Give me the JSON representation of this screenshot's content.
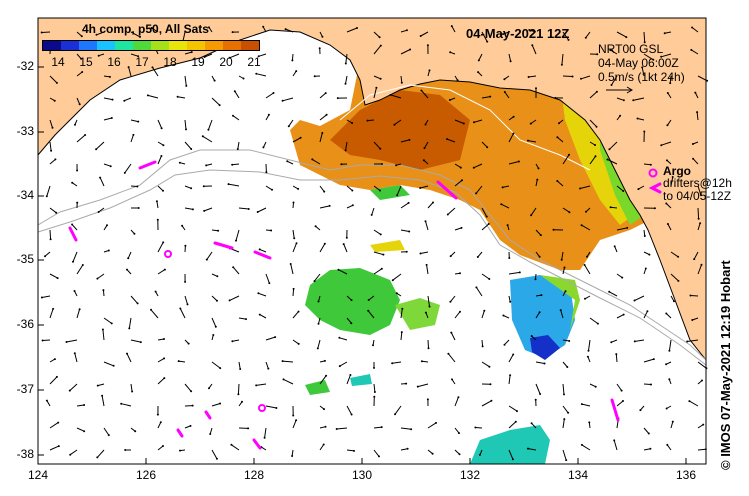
{
  "title": "4h comp, p50, All Sats",
  "date_label": "04-May-2021 12Z",
  "legend": {
    "current_source": "NRT00 GSL",
    "current_time": "04-May 06:00Z",
    "scale_label": "0.5m/s (1kt 24h)"
  },
  "argo_label": "Argo",
  "drifters_label_1": "drifters@12h",
  "drifters_label_2": "to 04/05-12Z",
  "credit": "© IMOS 07-May-2021 12:19 Hobart",
  "colorbar": {
    "min": 14,
    "max": 21,
    "ticks": [
      "14",
      "15",
      "16",
      "17",
      "18",
      "19",
      "20",
      "21"
    ],
    "colors": [
      "#0a0a8a",
      "#1a2fd6",
      "#1e78ff",
      "#19c3ff",
      "#1ee6a0",
      "#4fd93c",
      "#a6e01a",
      "#e6e60a",
      "#f5c400",
      "#f59a00",
      "#e87000",
      "#c95000"
    ]
  },
  "axes": {
    "lon_ticks": [
      "124",
      "126",
      "128",
      "130",
      "132",
      "134",
      "136"
    ],
    "lat_ticks": [
      "-32",
      "-33",
      "-34",
      "-35",
      "-36",
      "-37",
      "-38"
    ]
  },
  "colors": {
    "land": "#ffcc99",
    "argo": "#ff00ff",
    "sst_warm": "#e8820a",
    "sst_cool": "#3fc83a"
  }
}
